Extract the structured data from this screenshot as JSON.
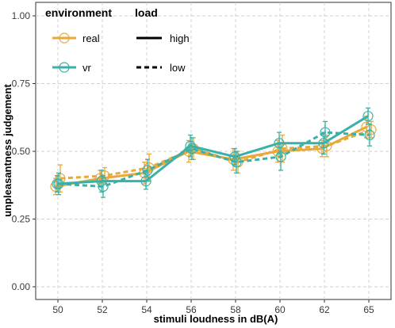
{
  "chart_data": {
    "type": "line",
    "xlabel": "stimuli loudness in dB(A)",
    "ylabel": "unpleasantness judgement",
    "categories": [
      "50",
      "52",
      "54",
      "56",
      "58",
      "60",
      "62",
      "65"
    ],
    "ylim": [
      0,
      1
    ],
    "yticks": [
      "0.00",
      "0.25",
      "0.50",
      "0.75",
      "1.00"
    ],
    "grid": true,
    "legend_position": "top-left",
    "legend": {
      "environment_title": "environment",
      "load_title": "load",
      "environment_items": [
        {
          "label": "real",
          "color": "#E8A93A"
        },
        {
          "label": "vr",
          "color": "#3AB1A8"
        }
      ],
      "load_items": [
        {
          "label": "high",
          "linetype": "solid"
        },
        {
          "label": "low",
          "linetype": "dashed"
        }
      ]
    },
    "series": [
      {
        "environment": "real",
        "load": "high",
        "color": "#E8A93A",
        "values": [
          0.37,
          0.4,
          0.42,
          0.5,
          0.47,
          0.5,
          0.51,
          0.59
        ],
        "err": [
          0.03,
          0.03,
          0.04,
          0.04,
          0.04,
          0.04,
          0.03,
          0.04
        ]
      },
      {
        "environment": "real",
        "load": "low",
        "color": "#E8A93A",
        "values": [
          0.4,
          0.41,
          0.44,
          0.51,
          0.46,
          0.51,
          0.52,
          0.58
        ],
        "err": [
          0.05,
          0.03,
          0.05,
          0.04,
          0.04,
          0.05,
          0.04,
          0.03
        ]
      },
      {
        "environment": "vr",
        "load": "high",
        "color": "#3AB1A8",
        "values": [
          0.38,
          0.39,
          0.39,
          0.52,
          0.48,
          0.53,
          0.53,
          0.63
        ],
        "err": [
          0.03,
          0.04,
          0.03,
          0.04,
          0.03,
          0.04,
          0.04,
          0.03
        ]
      },
      {
        "environment": "vr",
        "load": "low",
        "color": "#3AB1A8",
        "values": [
          0.38,
          0.37,
          0.43,
          0.51,
          0.46,
          0.48,
          0.57,
          0.56
        ],
        "err": [
          0.04,
          0.04,
          0.04,
          0.04,
          0.04,
          0.05,
          0.04,
          0.04
        ]
      }
    ]
  }
}
